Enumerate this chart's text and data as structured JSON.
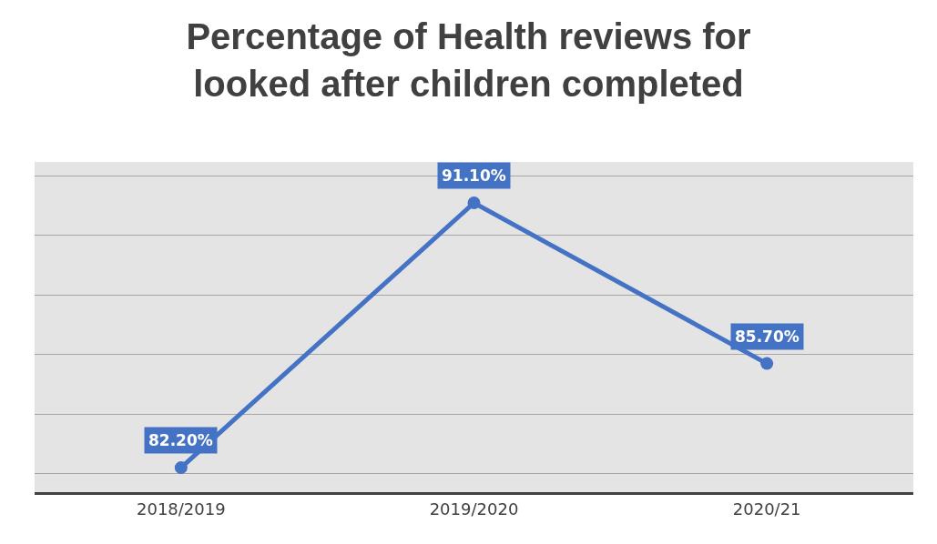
{
  "chart_data": {
    "type": "line",
    "title": "Percentage of Health reviews for looked after children completed",
    "categories": [
      "2018/2019",
      "2019/2020",
      "2020/21"
    ],
    "series": [
      {
        "color": "#4472c4",
        "values": [
          82.2,
          91.1,
          85.7
        ],
        "value_labels": [
          "82.20%",
          "91.10%",
          "85.70%"
        ]
      }
    ],
    "data_labels": true,
    "grid": "y",
    "marker": "circle",
    "line_style": "solid",
    "tick_labels": "x"
  }
}
